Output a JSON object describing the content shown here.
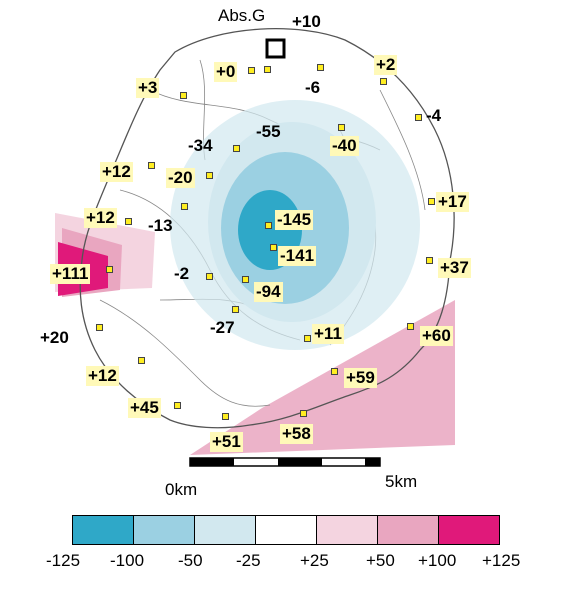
{
  "reference_label": "Abs.G",
  "colors": {
    "c_neg125": "#2fa8c8",
    "c_neg100": "#9bd0e2",
    "c_neg50": "#d2e8ef",
    "c_neg25": "#ffffff",
    "c_pos25": "#f4d4e0",
    "c_pos50": "#e9a6c0",
    "c_pos100": "#e0197a",
    "station": "#ffee22",
    "label_bg": "#fff9b8"
  },
  "stations": [
    {
      "label": "+10",
      "boxed": false
    },
    {
      "label": "+0",
      "boxed": true
    },
    {
      "label": "-6",
      "boxed": false
    },
    {
      "label": "+2",
      "boxed": true
    },
    {
      "label": "+3",
      "boxed": true
    },
    {
      "label": "-4",
      "boxed": false
    },
    {
      "label": "-55",
      "boxed": false
    },
    {
      "label": "-34",
      "boxed": false
    },
    {
      "label": "-40",
      "boxed": true
    },
    {
      "label": "+12",
      "boxed": true
    },
    {
      "label": "-20",
      "boxed": true
    },
    {
      "label": "+17",
      "boxed": true
    },
    {
      "label": "+12",
      "boxed": true
    },
    {
      "label": "-13",
      "boxed": false
    },
    {
      "label": "-145",
      "boxed": true
    },
    {
      "label": "-141",
      "boxed": true
    },
    {
      "label": "+111",
      "boxed": true
    },
    {
      "label": "-2",
      "boxed": false
    },
    {
      "label": "+37",
      "boxed": true
    },
    {
      "label": "-94",
      "boxed": true
    },
    {
      "label": "-27",
      "boxed": false
    },
    {
      "label": "+20",
      "boxed": false
    },
    {
      "label": "+11",
      "boxed": true
    },
    {
      "label": "+60",
      "boxed": true
    },
    {
      "label": "+12",
      "boxed": true
    },
    {
      "label": "+59",
      "boxed": true
    },
    {
      "label": "+45",
      "boxed": true
    },
    {
      "label": "+58",
      "boxed": true
    },
    {
      "label": "+51",
      "boxed": true
    }
  ],
  "scale_bar": {
    "start_label": "0km",
    "end_label": "5km"
  },
  "legend": {
    "ticks": [
      "-125",
      "-100",
      "-50",
      "-25",
      "+25",
      "+50",
      "+100",
      "+125"
    ],
    "colors": [
      "#2fa8c8",
      "#9bd0e2",
      "#d2e8ef",
      "#ffffff",
      "#f4d4e0",
      "#e9a6c0",
      "#e0197a"
    ]
  }
}
